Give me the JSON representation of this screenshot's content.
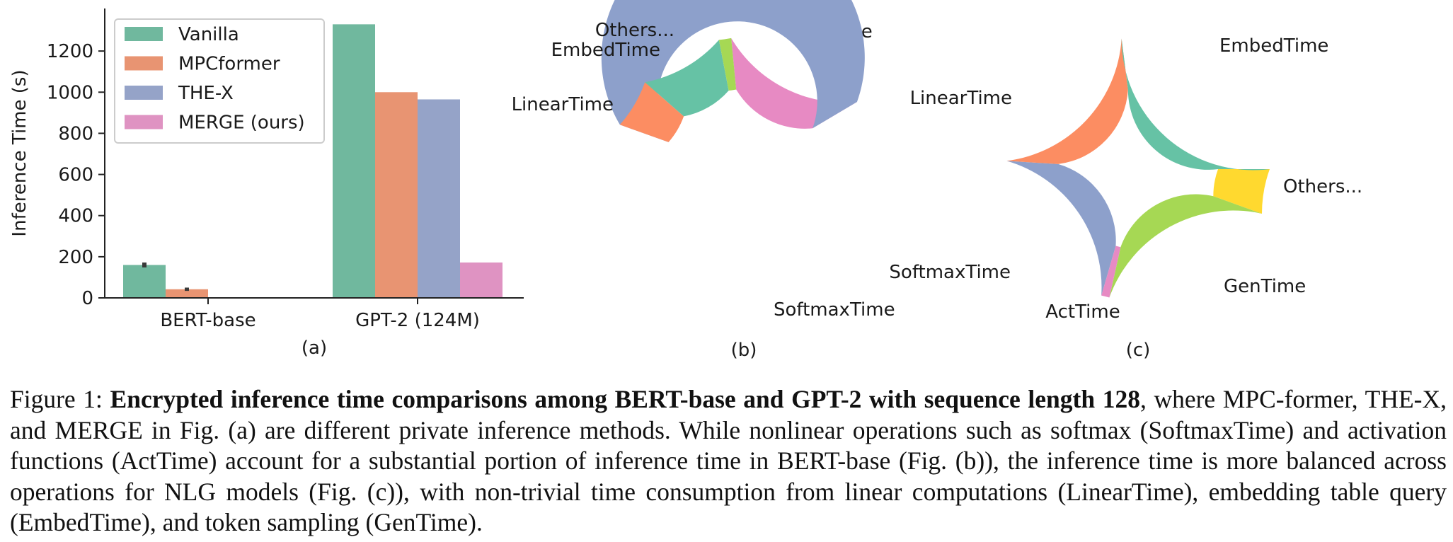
{
  "chart_data": [
    {
      "type": "bar",
      "panel": "(a)",
      "ylabel": "Inference Time (s)",
      "xlabel": "",
      "categories": [
        "BERT-base",
        "GPT-2 (124M)"
      ],
      "ylim": [
        0,
        1400
      ],
      "yticks": [
        0,
        200,
        400,
        600,
        800,
        1000,
        1200
      ],
      "series": [
        {
          "name": "Vanilla",
          "values": [
            160,
            1330
          ],
          "error": [
            12,
            null
          ],
          "color": "#70b89e"
        },
        {
          "name": "MPCformer",
          "values": [
            42,
            1000
          ],
          "error": [
            8,
            null
          ],
          "color": "#e89472"
        },
        {
          "name": "THE-X",
          "values": [
            null,
            965
          ],
          "error": [
            null,
            null
          ],
          "color": "#95a3c8"
        },
        {
          "name": "MERGE (ours)",
          "values": [
            null,
            172
          ],
          "error": [
            null,
            null
          ],
          "color": "#df93c2"
        }
      ],
      "legend": "top-left"
    },
    {
      "type": "pie",
      "panel": "(b)",
      "donut": true,
      "slices": [
        {
          "label": "ActTime",
          "value": 18,
          "color": "#e78ac3"
        },
        {
          "label": "SoftmaxTime",
          "value": 64,
          "color": "#8da0cb"
        },
        {
          "label": "LinearTime",
          "value": 6,
          "color": "#fc8d62"
        },
        {
          "label": "EmbedTime",
          "value": 10.5,
          "color": "#66c2a5"
        },
        {
          "label": "Others...",
          "value": 1.5,
          "color": "#a6d854"
        }
      ]
    },
    {
      "type": "pie",
      "panel": "(c)",
      "donut": true,
      "slices": [
        {
          "label": "Others...",
          "value": 5.5,
          "color": "#ffd92f"
        },
        {
          "label": "GenTime",
          "value": 23,
          "color": "#a6d854"
        },
        {
          "label": "ActTime",
          "value": 1,
          "color": "#e78ac3"
        },
        {
          "label": "SoftmaxTime",
          "value": 21.5,
          "color": "#8da0cb"
        },
        {
          "label": "LinearTime",
          "value": 22,
          "color": "#fc8d62"
        },
        {
          "label": "EmbedTime",
          "value": 27,
          "color": "#66c2a5"
        }
      ]
    }
  ],
  "caption": {
    "figure_label": "Figure 1:",
    "bold_title": "Encrypted inference time comparisons among BERT-base and GPT-2 with sequence length 128",
    "body": ", where MPC-former, THE-X, and MERGE in Fig. (a) are different private inference methods. While nonlinear operations such as softmax (SoftmaxTime) and activation functions (ActTime) account for a substantial portion of inference time in BERT-base (Fig. (b)), the inference time is more balanced across operations for NLG models (Fig. (c)), with non-trivial time consumption from linear computations (LinearTime), embedding table query (EmbedTime), and token sampling (GenTime)."
  }
}
